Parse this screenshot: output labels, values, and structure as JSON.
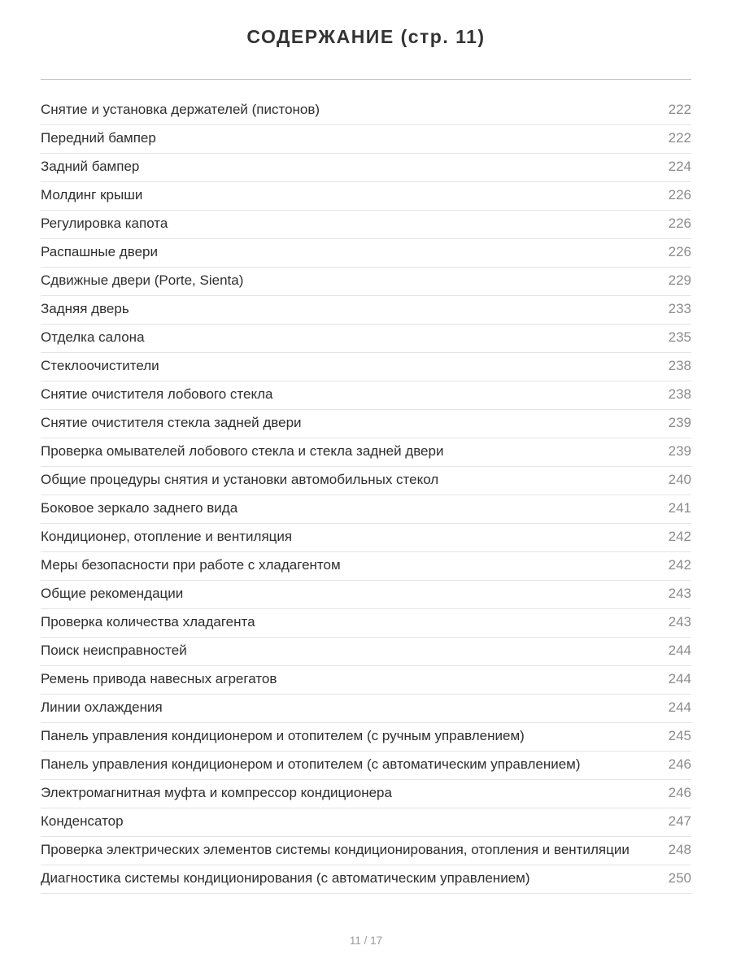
{
  "header": {
    "title": "СОДЕРЖАНИЕ (стр. 11)"
  },
  "entries": [
    {
      "title": "Снятие и установка держателей (пистонов)",
      "page": "222"
    },
    {
      "title": "Передний бампер",
      "page": "222"
    },
    {
      "title": "Задний бампер",
      "page": "224"
    },
    {
      "title": "Молдинг крыши",
      "page": "226"
    },
    {
      "title": "Регулировка капота",
      "page": "226"
    },
    {
      "title": "Распашные двери",
      "page": "226"
    },
    {
      "title": "Сдвижные двери (Porte, Sienta)",
      "page": "229"
    },
    {
      "title": "Задняя дверь",
      "page": "233"
    },
    {
      "title": "Отделка салона",
      "page": "235"
    },
    {
      "title": "Стеклоочистители",
      "page": "238"
    },
    {
      "title": "Снятие очистителя лобового стекла",
      "page": "238"
    },
    {
      "title": "Снятие очистителя стекла задней двери",
      "page": "239"
    },
    {
      "title": "Проверка омывателей лобового стекла и стекла задней двери",
      "page": "239"
    },
    {
      "title": "Общие процедуры снятия и установки автомобильных стекол",
      "page": "240"
    },
    {
      "title": "Боковое зеркало заднего вида",
      "page": "241"
    },
    {
      "title": "Кондиционер, отопление и вентиляция",
      "page": "242"
    },
    {
      "title": "Меры безопасности при работе с хладагентом",
      "page": "242"
    },
    {
      "title": "Общие рекомендации",
      "page": "243"
    },
    {
      "title": "Проверка количества хладагента",
      "page": "243"
    },
    {
      "title": "Поиск неисправностей",
      "page": "244"
    },
    {
      "title": "Ремень привода навесных агрегатов",
      "page": "244"
    },
    {
      "title": "Линии охлаждения",
      "page": "244"
    },
    {
      "title": "Панель управления кондиционером и отопителем (с ручным управлением)",
      "page": "245"
    },
    {
      "title": "Панель управления кондиционером и отопителем (с автоматическим управлением)",
      "page": "246"
    },
    {
      "title": "Электромагнитная муфта и компрессор кондиционера",
      "page": "246"
    },
    {
      "title": "Конденсатор",
      "page": "247"
    },
    {
      "title": "Проверка электрических элементов системы кондиционирования, отопления и вентиляции",
      "page": "248"
    },
    {
      "title": "Диагностика системы кондиционирования (с автоматическим управлением)",
      "page": "250"
    }
  ],
  "footer": {
    "page_indicator": "11 / 17"
  },
  "colors": {
    "title_text": "#333333",
    "entry_text": "#2e2e2e",
    "page_number": "#8b8b8b",
    "row_divider": "#e4e4e4",
    "header_divider": "#bfbfbf",
    "footer_text": "#9b9b9b"
  }
}
